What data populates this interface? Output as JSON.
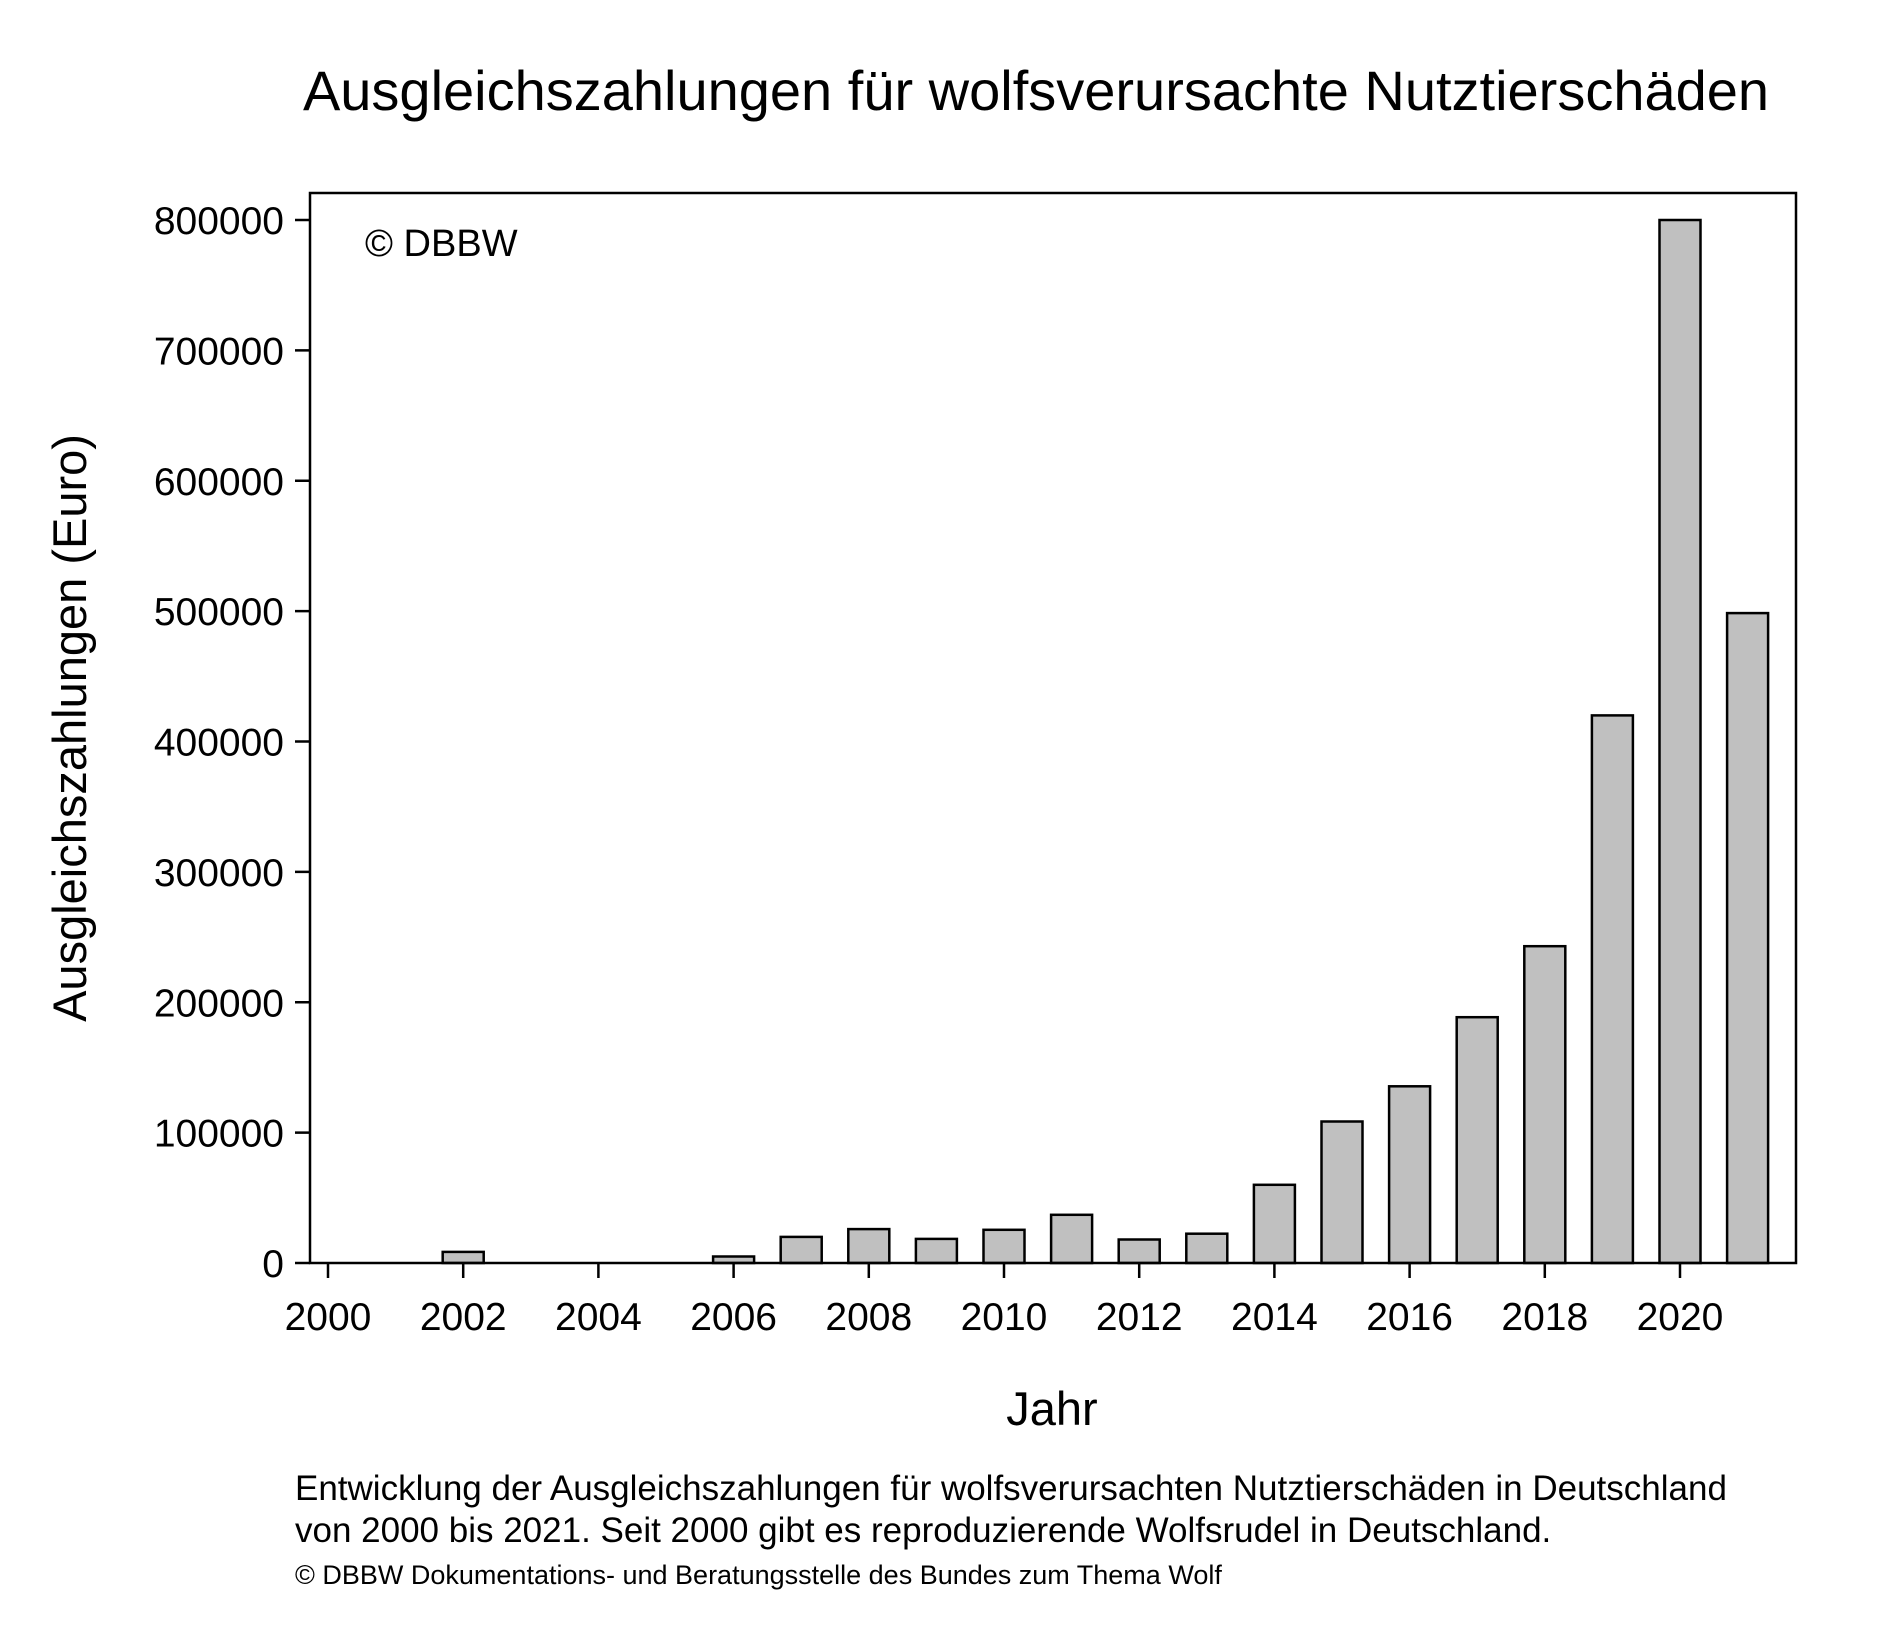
{
  "chart_data": {
    "type": "bar",
    "title": "Ausgleichszahlungen für wolfsverursachte Nutztierschäden",
    "xlabel": "Jahr",
    "ylabel": "Ausgleichszahlungen (Euro)",
    "watermark": "© DBBW",
    "x": [
      2000,
      2001,
      2002,
      2003,
      2004,
      2005,
      2006,
      2007,
      2008,
      2009,
      2010,
      2011,
      2012,
      2013,
      2014,
      2015,
      2016,
      2017,
      2018,
      2019,
      2020,
      2021
    ],
    "values": [
      0,
      0,
      8500,
      0,
      0,
      0,
      5000,
      20000,
      26000,
      18500,
      25500,
      37000,
      18000,
      22500,
      60000,
      108500,
      135500,
      188500,
      243000,
      420000,
      800000,
      498500
    ],
    "xlim": [
      1999.7,
      2021.7
    ],
    "ylim": [
      0,
      820000
    ],
    "xticks": [
      2000,
      2002,
      2004,
      2006,
      2008,
      2010,
      2012,
      2014,
      2016,
      2018,
      2020
    ],
    "xtick_labels": [
      "2000",
      "2002",
      "2004",
      "2006",
      "2008",
      "2010",
      "2012",
      "2014",
      "2016",
      "2018",
      "2020"
    ],
    "yticks": [
      0,
      100000,
      200000,
      300000,
      400000,
      500000,
      600000,
      700000,
      800000
    ],
    "ytick_labels": [
      "0",
      "100000",
      "200000",
      "300000",
      "400000",
      "500000",
      "600000",
      "700000",
      "800000"
    ],
    "bar_color": "#c0c0c0",
    "grid": false,
    "legend": "none"
  },
  "caption": {
    "line1": "Entwicklung der Ausgleichszahlungen für wolfsverursachten Nutztierschäden in Deutschland",
    "line2": "von 2000 bis 2021. Seit 2000 gibt es reproduzierende Wolfsrudel in Deutschland.",
    "credit": "© DBBW Dokumentations- und Beratungsstelle des Bundes zum Thema Wolf"
  }
}
